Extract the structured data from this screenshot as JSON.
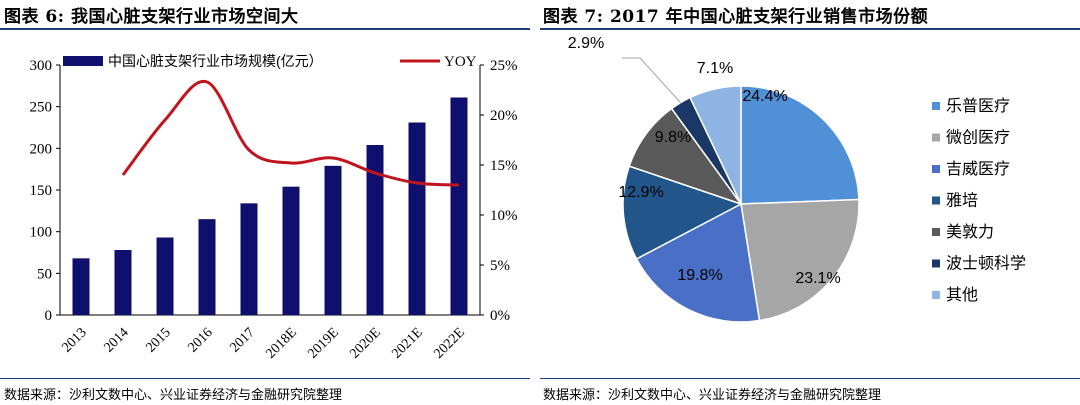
{
  "left_panel": {
    "title": "图表 6:  我国心脏支架行业市场空间大",
    "source": "数据来源：沙利文数中心、兴业证券经济与金融研究院整理"
  },
  "right_panel": {
    "title": "图表 7:    2017 年中国心脏支架行业销售市场份额",
    "source": "数据来源：沙利文数中心、兴业证券经济与金融研究院整理"
  },
  "chart_data": [
    {
      "type": "bar",
      "categories": [
        "2013",
        "2014",
        "2015",
        "2016",
        "2017",
        "2018E",
        "2019E",
        "2020E",
        "2021E",
        "2022E"
      ],
      "series": [
        {
          "name": "中国心脏支架行业市场规模(亿元）",
          "type": "bar",
          "axis": "left",
          "values": [
            68,
            78,
            93,
            115,
            134,
            154,
            179,
            204,
            231,
            261
          ]
        },
        {
          "name": "YOY",
          "type": "line",
          "axis": "right",
          "values": [
            null,
            14.0,
            19.5,
            23.3,
            16.5,
            15.2,
            15.7,
            14.2,
            13.2,
            13.0
          ]
        }
      ],
      "y_left": {
        "ticks": [
          "0",
          "50",
          "100",
          "150",
          "200",
          "250",
          "300"
        ],
        "ylim": [
          0,
          300
        ]
      },
      "y_right": {
        "ticks": [
          "0%",
          "5%",
          "10%",
          "15%",
          "20%",
          "25%"
        ],
        "ylim": [
          0,
          25
        ]
      },
      "legend_position": "top",
      "colors": {
        "bar": "#0f0f6e",
        "line": "#c0141e"
      }
    },
    {
      "type": "pie",
      "labels": [
        "乐普医疗",
        "微创医疗",
        "吉威医疗",
        "雅培",
        "美敦力",
        "波士顿科学",
        "其他"
      ],
      "values": [
        24.4,
        23.1,
        19.8,
        12.9,
        9.8,
        2.9,
        7.1
      ],
      "value_labels": [
        "24.4%",
        "23.1%",
        "19.8%",
        "12.9%",
        "9.8%",
        "2.9%",
        "7.1%"
      ],
      "colors": [
        "#4f90d6",
        "#a6a6a6",
        "#4a6fc7",
        "#22558a",
        "#595959",
        "#1b3766",
        "#8db4e3"
      ],
      "legend_position": "right"
    }
  ]
}
